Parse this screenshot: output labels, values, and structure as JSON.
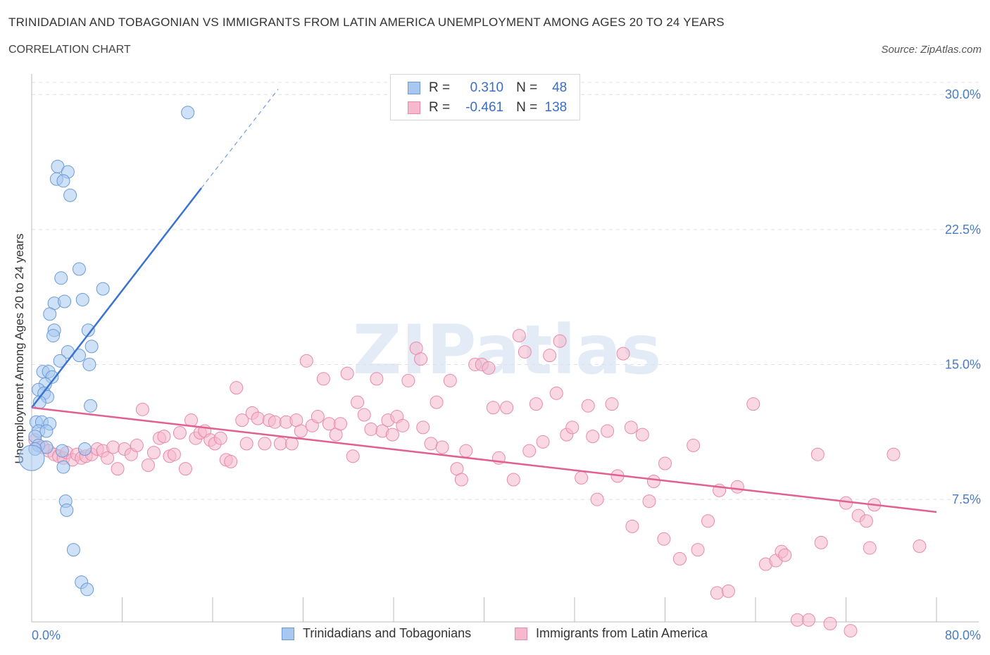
{
  "title": "TRINIDADIAN AND TOBAGONIAN VS IMMIGRANTS FROM LATIN AMERICA UNEMPLOYMENT AMONG AGES 20 TO 24 YEARS",
  "subtitle": "CORRELATION CHART",
  "source": "Source: ZipAtlas.com",
  "watermark": "ZIPatlas",
  "legend": {
    "series1": {
      "r_label": "R =",
      "r_value": "0.310",
      "n_label": "N =",
      "n_value": "48"
    },
    "series2": {
      "r_label": "R =",
      "r_value": "-0.461",
      "n_label": "N =",
      "n_value": "138"
    }
  },
  "bottom_legend": {
    "series1": "Trinidadians and Tobagonians",
    "series2": "Immigrants from Latin America"
  },
  "colors": {
    "blue_fill": "#a8c8f0",
    "blue_stroke": "#6a9ad8",
    "blue_line": "#3a74d0",
    "pink_fill": "#f5b8cc",
    "pink_stroke": "#e88aa8",
    "pink_line": "#e06090",
    "grid": "#e0e0e0",
    "tick_text": "#4a7cc4"
  },
  "chart_data": {
    "type": "scatter",
    "xlabel": "",
    "ylabel": "Unemployment Among Ages 20 to 24 years",
    "xlim": [
      0,
      80
    ],
    "ylim": [
      0,
      30.5
    ],
    "x_tick_labels": [
      "0.0%",
      "80.0%"
    ],
    "y_ticks": [
      7.5,
      15.0,
      22.5,
      30.0
    ],
    "y_tick_labels": [
      "7.5%",
      "15.0%",
      "22.5%",
      "30.0%"
    ],
    "series": [
      {
        "name": "Trinidadians and Tobagonians",
        "trend": {
          "x": [
            0,
            15.0
          ],
          "y": [
            12.6,
            24.8
          ],
          "dashed_to": [
            21.8,
            30.3
          ]
        },
        "points": [
          [
            13.8,
            29.0
          ],
          [
            2.3,
            26.0
          ],
          [
            3.2,
            25.7
          ],
          [
            2.2,
            25.3
          ],
          [
            2.8,
            25.2
          ],
          [
            3.4,
            24.4
          ],
          [
            4.2,
            20.3
          ],
          [
            2.6,
            19.8
          ],
          [
            6.3,
            19.2
          ],
          [
            2.0,
            18.4
          ],
          [
            2.9,
            18.5
          ],
          [
            4.5,
            18.6
          ],
          [
            1.6,
            17.8
          ],
          [
            5.0,
            16.9
          ],
          [
            2.0,
            16.9
          ],
          [
            1.9,
            16.6
          ],
          [
            3.2,
            15.7
          ],
          [
            5.3,
            16.0
          ],
          [
            4.2,
            15.5
          ],
          [
            2.5,
            15.2
          ],
          [
            5.1,
            15.0
          ],
          [
            1.0,
            14.6
          ],
          [
            1.5,
            14.6
          ],
          [
            1.8,
            14.3
          ],
          [
            1.2,
            13.9
          ],
          [
            0.6,
            13.6
          ],
          [
            1.1,
            13.4
          ],
          [
            1.4,
            13.2
          ],
          [
            0.7,
            12.9
          ],
          [
            5.2,
            12.7
          ],
          [
            0.4,
            11.8
          ],
          [
            0.9,
            11.8
          ],
          [
            1.6,
            11.7
          ],
          [
            0.6,
            11.3
          ],
          [
            1.3,
            11.3
          ],
          [
            0.3,
            11.0
          ],
          [
            0.6,
            10.5
          ],
          [
            1.3,
            10.4
          ],
          [
            0.3,
            10.3
          ],
          [
            2.7,
            10.2
          ],
          [
            4.7,
            10.3
          ],
          [
            0.0,
            9.8
          ],
          [
            2.8,
            9.3
          ],
          [
            3.0,
            7.4
          ],
          [
            3.1,
            6.9
          ],
          [
            3.7,
            4.7
          ],
          [
            4.4,
            2.9
          ],
          [
            4.9,
            2.5
          ]
        ]
      },
      {
        "name": "Immigrants from Latin America",
        "trend": {
          "x": [
            0,
            80
          ],
          "y": [
            12.6,
            6.8
          ]
        },
        "points": [
          [
            0.3,
            10.8
          ],
          [
            1.0,
            10.4
          ],
          [
            1.5,
            10.2
          ],
          [
            2.0,
            10.0
          ],
          [
            2.4,
            9.9
          ],
          [
            2.8,
            9.8
          ],
          [
            3.1,
            10.1
          ],
          [
            3.6,
            9.7
          ],
          [
            4.0,
            10.0
          ],
          [
            4.4,
            9.8
          ],
          [
            4.8,
            9.9
          ],
          [
            5.3,
            10.0
          ],
          [
            5.8,
            10.3
          ],
          [
            6.3,
            10.2
          ],
          [
            6.7,
            9.8
          ],
          [
            7.2,
            10.4
          ],
          [
            7.6,
            9.2
          ],
          [
            8.2,
            10.3
          ],
          [
            8.8,
            10.0
          ],
          [
            9.3,
            10.5
          ],
          [
            9.8,
            12.5
          ],
          [
            10.3,
            9.4
          ],
          [
            10.8,
            10.1
          ],
          [
            11.3,
            10.9
          ],
          [
            11.7,
            11.0
          ],
          [
            12.2,
            9.9
          ],
          [
            12.6,
            10.0
          ],
          [
            13.1,
            11.2
          ],
          [
            13.6,
            9.2
          ],
          [
            14.1,
            11.9
          ],
          [
            14.5,
            10.9
          ],
          [
            14.9,
            11.2
          ],
          [
            15.3,
            11.3
          ],
          [
            15.8,
            10.8
          ],
          [
            16.2,
            10.6
          ],
          [
            16.7,
            10.9
          ],
          [
            17.2,
            9.7
          ],
          [
            17.6,
            9.6
          ],
          [
            18.1,
            13.7
          ],
          [
            18.6,
            11.9
          ],
          [
            19.0,
            10.6
          ],
          [
            19.5,
            12.3
          ],
          [
            20.0,
            12.0
          ],
          [
            20.6,
            10.6
          ],
          [
            21.0,
            11.9
          ],
          [
            21.5,
            11.8
          ],
          [
            22.0,
            10.6
          ],
          [
            22.5,
            11.8
          ],
          [
            23.0,
            10.6
          ],
          [
            23.4,
            11.9
          ],
          [
            23.8,
            11.3
          ],
          [
            24.3,
            15.2
          ],
          [
            24.8,
            11.6
          ],
          [
            25.3,
            12.1
          ],
          [
            25.8,
            14.2
          ],
          [
            26.3,
            11.7
          ],
          [
            26.9,
            11.1
          ],
          [
            27.3,
            11.7
          ],
          [
            27.9,
            14.5
          ],
          [
            28.4,
            9.9
          ],
          [
            28.8,
            12.9
          ],
          [
            29.4,
            12.2
          ],
          [
            30.0,
            11.4
          ],
          [
            30.5,
            14.2
          ],
          [
            31.0,
            11.3
          ],
          [
            31.5,
            11.9
          ],
          [
            31.9,
            11.1
          ],
          [
            32.3,
            12.1
          ],
          [
            32.8,
            11.6
          ],
          [
            33.3,
            14.1
          ],
          [
            34.0,
            15.9
          ],
          [
            34.4,
            15.3
          ],
          [
            34.6,
            11.5
          ],
          [
            35.3,
            10.6
          ],
          [
            35.8,
            12.9
          ],
          [
            36.3,
            10.4
          ],
          [
            37.0,
            14.1
          ],
          [
            37.6,
            9.2
          ],
          [
            38.0,
            8.6
          ],
          [
            38.4,
            10.2
          ],
          [
            39.2,
            15.0
          ],
          [
            39.8,
            15.0
          ],
          [
            40.4,
            14.8
          ],
          [
            40.8,
            12.6
          ],
          [
            41.3,
            9.8
          ],
          [
            42.0,
            12.6
          ],
          [
            42.6,
            8.6
          ],
          [
            43.1,
            16.6
          ],
          [
            43.6,
            15.7
          ],
          [
            44.0,
            10.2
          ],
          [
            44.6,
            12.8
          ],
          [
            45.2,
            10.7
          ],
          [
            45.8,
            15.5
          ],
          [
            46.4,
            13.4
          ],
          [
            46.7,
            16.3
          ],
          [
            47.3,
            11.1
          ],
          [
            47.8,
            11.5
          ],
          [
            48.6,
            8.7
          ],
          [
            49.2,
            12.7
          ],
          [
            49.6,
            11.0
          ],
          [
            50.0,
            7.5
          ],
          [
            50.9,
            11.3
          ],
          [
            51.3,
            12.8
          ],
          [
            51.8,
            8.8
          ],
          [
            52.3,
            15.6
          ],
          [
            53.0,
            11.5
          ],
          [
            53.1,
            6.0
          ],
          [
            54.0,
            11.1
          ],
          [
            54.6,
            7.4
          ],
          [
            55.0,
            8.5
          ],
          [
            55.9,
            5.3
          ],
          [
            56.0,
            9.5
          ],
          [
            57.3,
            4.2
          ],
          [
            58.5,
            10.5
          ],
          [
            58.9,
            4.7
          ],
          [
            59.8,
            6.3
          ],
          [
            60.6,
            2.3
          ],
          [
            60.8,
            8.0
          ],
          [
            61.6,
            2.4
          ],
          [
            62.4,
            8.2
          ],
          [
            63.8,
            12.8
          ],
          [
            64.9,
            3.9
          ],
          [
            65.8,
            4.1
          ],
          [
            66.3,
            4.6
          ],
          [
            66.6,
            4.4
          ],
          [
            67.7,
            0.8
          ],
          [
            68.7,
            0.8
          ],
          [
            69.5,
            10.0
          ],
          [
            69.8,
            5.1
          ],
          [
            70.6,
            0.6
          ],
          [
            72.0,
            7.3
          ],
          [
            72.4,
            0.2
          ],
          [
            73.1,
            6.6
          ],
          [
            73.8,
            6.3
          ],
          [
            74.1,
            4.8
          ],
          [
            74.5,
            7.2
          ],
          [
            76.2,
            10.0
          ],
          [
            78.5,
            4.9
          ]
        ]
      }
    ]
  }
}
